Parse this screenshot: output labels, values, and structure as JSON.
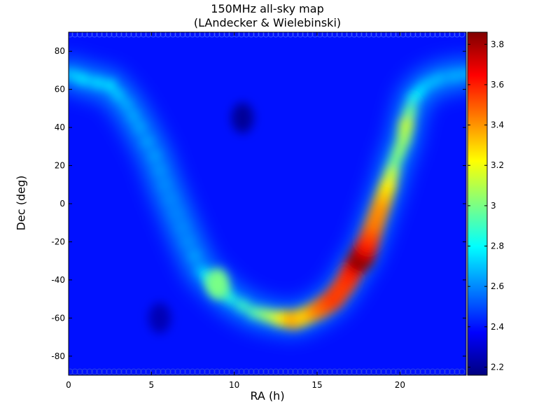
{
  "chart_data": {
    "type": "heatmap",
    "title": "150MHz all-sky map",
    "subtitle": "(LAndecker & Wielebinski)",
    "xlabel": "RA (h)",
    "ylabel": "Dec (deg)",
    "xlim": [
      0,
      24
    ],
    "ylim": [
      -90,
      90
    ],
    "xticks": [
      0,
      5,
      10,
      15,
      20
    ],
    "yticks": [
      -80,
      -60,
      -40,
      -20,
      0,
      20,
      40,
      60,
      80
    ],
    "colorbar": {
      "ticks": [
        2.2,
        2.4,
        2.6,
        2.8,
        3,
        3.2,
        3.4,
        3.6,
        3.8
      ],
      "tick_labels": [
        "2.2",
        "2.4",
        "2.6",
        "2.8",
        "3",
        "3.2",
        "3.4",
        "3.6",
        "3.8"
      ],
      "range": [
        2.16,
        3.86
      ],
      "colormap": "jet"
    },
    "background_level": 2.4,
    "galactic_plane": [
      {
        "ra": 0.0,
        "dec": 68,
        "value": 2.72
      },
      {
        "ra": 1.0,
        "dec": 65,
        "value": 2.78
      },
      {
        "ra": 2.5,
        "dec": 62,
        "value": 2.8
      },
      {
        "ra": 3.5,
        "dec": 52,
        "value": 2.7
      },
      {
        "ra": 4.3,
        "dec": 40,
        "value": 2.68
      },
      {
        "ra": 5.2,
        "dec": 25,
        "value": 2.66
      },
      {
        "ra": 5.8,
        "dec": 10,
        "value": 2.62
      },
      {
        "ra": 6.5,
        "dec": -5,
        "value": 2.6
      },
      {
        "ra": 7.2,
        "dec": -20,
        "value": 2.62
      },
      {
        "ra": 8.0,
        "dec": -35,
        "value": 2.72
      },
      {
        "ra": 8.8,
        "dec": -42,
        "value": 2.95
      },
      {
        "ra": 9.8,
        "dec": -50,
        "value": 2.85
      },
      {
        "ra": 11.2,
        "dec": -57,
        "value": 2.95
      },
      {
        "ra": 12.6,
        "dec": -60,
        "value": 3.15
      },
      {
        "ra": 13.6,
        "dec": -61,
        "value": 3.38
      },
      {
        "ra": 14.3,
        "dec": -59,
        "value": 3.3
      },
      {
        "ra": 15.2,
        "dec": -55,
        "value": 3.45
      },
      {
        "ra": 16.0,
        "dec": -50,
        "value": 3.55
      },
      {
        "ra": 16.7,
        "dec": -42,
        "value": 3.55
      },
      {
        "ra": 17.2,
        "dec": -34,
        "value": 3.6
      },
      {
        "ra": 17.7,
        "dec": -28,
        "value": 3.86
      },
      {
        "ra": 18.1,
        "dec": -20,
        "value": 3.6
      },
      {
        "ra": 18.5,
        "dec": -10,
        "value": 3.45
      },
      {
        "ra": 18.9,
        "dec": 0,
        "value": 3.4
      },
      {
        "ra": 19.3,
        "dec": 10,
        "value": 3.25
      },
      {
        "ra": 19.7,
        "dec": 22,
        "value": 3.0
      },
      {
        "ra": 20.2,
        "dec": 33,
        "value": 3.05
      },
      {
        "ra": 20.4,
        "dec": 42,
        "value": 3.12
      },
      {
        "ra": 20.8,
        "dec": 55,
        "value": 2.85
      },
      {
        "ra": 21.5,
        "dec": 62,
        "value": 2.72
      },
      {
        "ra": 22.5,
        "dec": 66,
        "value": 2.7
      },
      {
        "ra": 24.0,
        "dec": 68,
        "value": 2.72
      }
    ],
    "local_sources": [
      {
        "ra": 9.0,
        "dec": -42,
        "value": 3.0
      },
      {
        "ra": 5.5,
        "dec": -60,
        "value": 2.25
      },
      {
        "ra": 10.5,
        "dec": 45,
        "value": 2.2
      }
    ]
  }
}
